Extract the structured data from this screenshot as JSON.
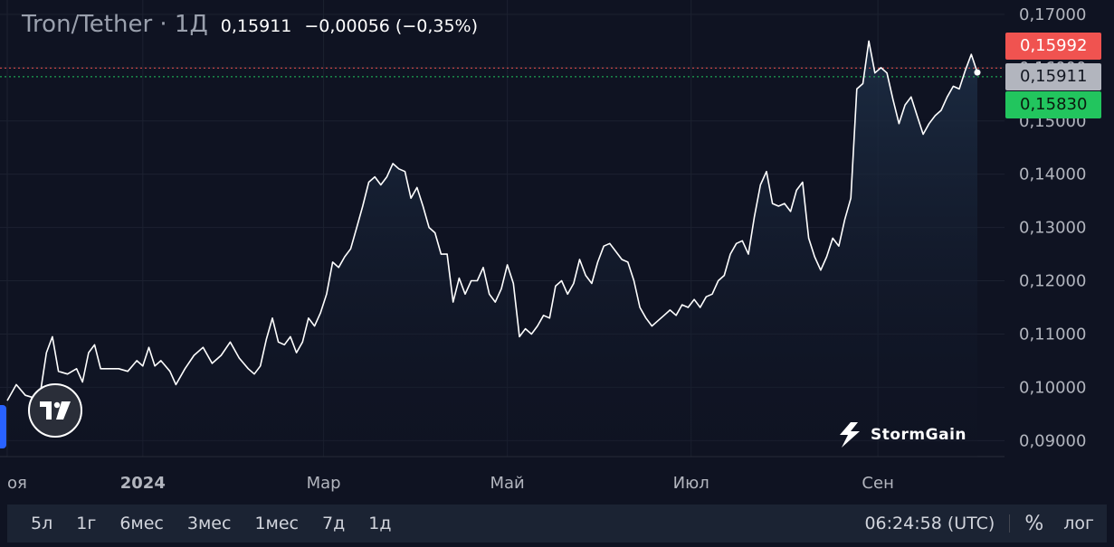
{
  "header": {
    "title": "Tron/Tether · 1Д",
    "price": "0,15911",
    "change": "−0,00056 (−0,35%)"
  },
  "badges": {
    "ask": "0,15992",
    "last": "0,15911",
    "bid": "0,15830"
  },
  "colors": {
    "background": "#0f1322",
    "line": "#ffffff",
    "ask": "#f05350",
    "bid": "#22c55e",
    "last": "#b2b5be",
    "grid": "#1c2130"
  },
  "watermark": {
    "icon": "stormgain-bolt-icon",
    "text": "StormGain"
  },
  "logo": {
    "icon": "tradingview-logo-icon"
  },
  "toolbar": {
    "ranges": [
      "5л",
      "1г",
      "6мес",
      "3мес",
      "1мес",
      "7д",
      "1д"
    ],
    "clock": "06:24:58 (UTC)",
    "percent": "%",
    "log": "лог"
  },
  "chart_data": {
    "type": "area",
    "title": "Tron/Tether · 1Д",
    "xlabel": "",
    "ylabel": "",
    "ylim": [
      0.087,
      0.171
    ],
    "y_ticks": [
      "0,17000",
      "0,16000",
      "0,15000",
      "0,14000",
      "0,13000",
      "0,12000",
      "0,11000",
      "0,10000",
      "0,09000"
    ],
    "y_tick_values": [
      0.17,
      0.16,
      0.15,
      0.14,
      0.13,
      0.12,
      0.11,
      0.1,
      0.09
    ],
    "x_start": "2023-11-17",
    "x_end": "2024-10-04",
    "x_ticks": [
      {
        "label": "оя",
        "date": "2023-11-17",
        "bold": false
      },
      {
        "label": "2024",
        "date": "2024-01-01",
        "bold": true
      },
      {
        "label": "Мар",
        "date": "2024-03-01",
        "bold": false
      },
      {
        "label": "Май",
        "date": "2024-05-01",
        "bold": false
      },
      {
        "label": "Июл",
        "date": "2024-07-01",
        "bold": false
      },
      {
        "label": "Сен",
        "date": "2024-09-01",
        "bold": false
      }
    ],
    "grid": true,
    "reference_lines": {
      "ask": 0.15992,
      "bid": 0.1583
    },
    "series": [
      {
        "points": [
          [
            "2023-11-17",
            0.0975
          ],
          [
            "2023-11-20",
            0.1005
          ],
          [
            "2023-11-23",
            0.0985
          ],
          [
            "2023-11-26",
            0.098
          ],
          [
            "2023-11-28",
            0.099
          ],
          [
            "2023-11-30",
            0.1065
          ],
          [
            "2023-12-02",
            0.1095
          ],
          [
            "2023-12-04",
            0.103
          ],
          [
            "2023-12-07",
            0.1025
          ],
          [
            "2023-12-10",
            0.1035
          ],
          [
            "2023-12-12",
            0.101
          ],
          [
            "2023-12-14",
            0.1065
          ],
          [
            "2023-12-16",
            0.108
          ],
          [
            "2023-12-18",
            0.1035
          ],
          [
            "2023-12-21",
            0.1035
          ],
          [
            "2023-12-24",
            0.1035
          ],
          [
            "2023-12-27",
            0.103
          ],
          [
            "2023-12-30",
            0.105
          ],
          [
            "2024-01-01",
            0.104
          ],
          [
            "2024-01-03",
            0.1075
          ],
          [
            "2024-01-05",
            0.104
          ],
          [
            "2024-01-07",
            0.105
          ],
          [
            "2024-01-10",
            0.103
          ],
          [
            "2024-01-12",
            0.1005
          ],
          [
            "2024-01-15",
            0.1035
          ],
          [
            "2024-01-18",
            0.106
          ],
          [
            "2024-01-21",
            0.1075
          ],
          [
            "2024-01-24",
            0.1045
          ],
          [
            "2024-01-27",
            0.106
          ],
          [
            "2024-01-30",
            0.1085
          ],
          [
            "2024-02-02",
            0.1055
          ],
          [
            "2024-02-05",
            0.1035
          ],
          [
            "2024-02-07",
            0.1025
          ],
          [
            "2024-02-09",
            0.104
          ],
          [
            "2024-02-11",
            0.109
          ],
          [
            "2024-02-13",
            0.113
          ],
          [
            "2024-02-15",
            0.1085
          ],
          [
            "2024-02-17",
            0.108
          ],
          [
            "2024-02-19",
            0.1095
          ],
          [
            "2024-02-21",
            0.1065
          ],
          [
            "2024-02-23",
            0.1085
          ],
          [
            "2024-02-25",
            0.113
          ],
          [
            "2024-02-27",
            0.1115
          ],
          [
            "2024-02-29",
            0.114
          ],
          [
            "2024-03-02",
            0.1175
          ],
          [
            "2024-03-04",
            0.1235
          ],
          [
            "2024-03-06",
            0.1225
          ],
          [
            "2024-03-08",
            0.1245
          ],
          [
            "2024-03-10",
            0.126
          ],
          [
            "2024-03-12",
            0.13
          ],
          [
            "2024-03-14",
            0.134
          ],
          [
            "2024-03-16",
            0.1385
          ],
          [
            "2024-03-18",
            0.1395
          ],
          [
            "2024-03-20",
            0.138
          ],
          [
            "2024-03-22",
            0.1395
          ],
          [
            "2024-03-24",
            0.142
          ],
          [
            "2024-03-26",
            0.141
          ],
          [
            "2024-03-28",
            0.1405
          ],
          [
            "2024-03-30",
            0.1355
          ],
          [
            "2024-04-01",
            0.1375
          ],
          [
            "2024-04-03",
            0.134
          ],
          [
            "2024-04-05",
            0.13
          ],
          [
            "2024-04-07",
            0.129
          ],
          [
            "2024-04-09",
            0.125
          ],
          [
            "2024-04-11",
            0.125
          ],
          [
            "2024-04-13",
            0.116
          ],
          [
            "2024-04-15",
            0.1205
          ],
          [
            "2024-04-17",
            0.1175
          ],
          [
            "2024-04-19",
            0.12
          ],
          [
            "2024-04-21",
            0.12
          ],
          [
            "2024-04-23",
            0.1225
          ],
          [
            "2024-04-25",
            0.1175
          ],
          [
            "2024-04-27",
            0.116
          ],
          [
            "2024-04-29",
            0.1185
          ],
          [
            "2024-05-01",
            0.123
          ],
          [
            "2024-05-03",
            0.1195
          ],
          [
            "2024-05-05",
            0.1095
          ],
          [
            "2024-05-07",
            0.111
          ],
          [
            "2024-05-09",
            0.11
          ],
          [
            "2024-05-11",
            0.1115
          ],
          [
            "2024-05-13",
            0.1135
          ],
          [
            "2024-05-15",
            0.113
          ],
          [
            "2024-05-17",
            0.119
          ],
          [
            "2024-05-19",
            0.12
          ],
          [
            "2024-05-21",
            0.1175
          ],
          [
            "2024-05-23",
            0.1195
          ],
          [
            "2024-05-25",
            0.124
          ],
          [
            "2024-05-27",
            0.121
          ],
          [
            "2024-05-29",
            0.1195
          ],
          [
            "2024-05-31",
            0.1235
          ],
          [
            "2024-06-02",
            0.1265
          ],
          [
            "2024-06-04",
            0.127
          ],
          [
            "2024-06-06",
            0.1255
          ],
          [
            "2024-06-08",
            0.124
          ],
          [
            "2024-06-10",
            0.1235
          ],
          [
            "2024-06-12",
            0.12
          ],
          [
            "2024-06-14",
            0.115
          ],
          [
            "2024-06-16",
            0.113
          ],
          [
            "2024-06-18",
            0.1115
          ],
          [
            "2024-06-20",
            0.1125
          ],
          [
            "2024-06-22",
            0.1135
          ],
          [
            "2024-06-24",
            0.1145
          ],
          [
            "2024-06-26",
            0.1135
          ],
          [
            "2024-06-28",
            0.1155
          ],
          [
            "2024-06-30",
            0.115
          ],
          [
            "2024-07-02",
            0.1165
          ],
          [
            "2024-07-04",
            0.115
          ],
          [
            "2024-07-06",
            0.117
          ],
          [
            "2024-07-08",
            0.1175
          ],
          [
            "2024-07-10",
            0.12
          ],
          [
            "2024-07-12",
            0.121
          ],
          [
            "2024-07-14",
            0.125
          ],
          [
            "2024-07-16",
            0.127
          ],
          [
            "2024-07-18",
            0.1275
          ],
          [
            "2024-07-20",
            0.125
          ],
          [
            "2024-07-22",
            0.132
          ],
          [
            "2024-07-24",
            0.138
          ],
          [
            "2024-07-26",
            0.1405
          ],
          [
            "2024-07-28",
            0.1345
          ],
          [
            "2024-07-30",
            0.134
          ],
          [
            "2024-08-01",
            0.1345
          ],
          [
            "2024-08-03",
            0.133
          ],
          [
            "2024-08-05",
            0.137
          ],
          [
            "2024-08-07",
            0.1385
          ],
          [
            "2024-08-09",
            0.128
          ],
          [
            "2024-08-11",
            0.1245
          ],
          [
            "2024-08-13",
            0.122
          ],
          [
            "2024-08-15",
            0.1245
          ],
          [
            "2024-08-17",
            0.128
          ],
          [
            "2024-08-19",
            0.1265
          ],
          [
            "2024-08-21",
            0.1315
          ],
          [
            "2024-08-23",
            0.1355
          ],
          [
            "2024-08-25",
            0.156
          ],
          [
            "2024-08-27",
            0.157
          ],
          [
            "2024-08-29",
            0.165
          ],
          [
            "2024-08-31",
            0.159
          ],
          [
            "2024-09-02",
            0.16
          ],
          [
            "2024-09-04",
            0.159
          ],
          [
            "2024-09-06",
            0.154
          ],
          [
            "2024-09-08",
            0.1495
          ],
          [
            "2024-09-10",
            0.153
          ],
          [
            "2024-09-12",
            0.1545
          ],
          [
            "2024-09-14",
            0.151
          ],
          [
            "2024-09-16",
            0.1475
          ],
          [
            "2024-09-18",
            0.1495
          ],
          [
            "2024-09-20",
            0.151
          ],
          [
            "2024-09-22",
            0.152
          ],
          [
            "2024-09-24",
            0.1545
          ],
          [
            "2024-09-26",
            0.1565
          ],
          [
            "2024-09-28",
            0.156
          ],
          [
            "2024-09-30",
            0.1595
          ],
          [
            "2024-10-02",
            0.1625
          ],
          [
            "2024-10-04",
            0.1591
          ]
        ]
      }
    ]
  }
}
